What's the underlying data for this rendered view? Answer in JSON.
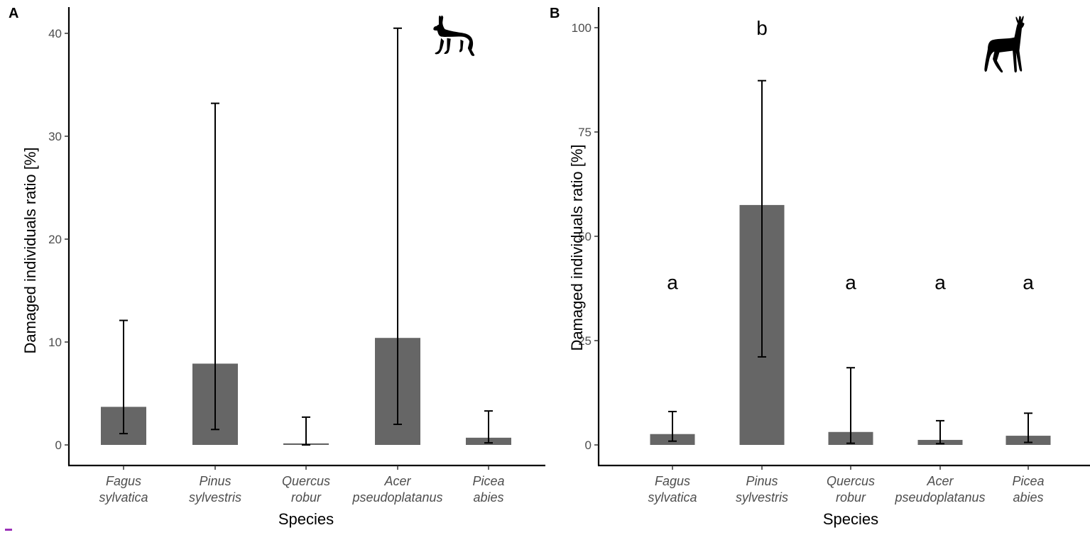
{
  "figure": {
    "panels": [
      {
        "id": "A",
        "letter": "A",
        "animal_icon": "hare-silhouette-icon",
        "ylabel": "Damaged individuals ratio [%]",
        "xlabel": "Species",
        "yticks": [
          "0",
          "10",
          "20",
          "30",
          "40"
        ]
      },
      {
        "id": "B",
        "letter": "B",
        "animal_icon": "roe-deer-silhouette-icon",
        "ylabel": "Damaged individuals ratio [%]",
        "xlabel": "Species",
        "yticks": [
          "0",
          "25",
          "50",
          "75",
          "100"
        ]
      }
    ],
    "species_line1": [
      "Fagus",
      "Pinus",
      "Quercus",
      "Acer",
      "Picea"
    ],
    "species_line2": [
      "sylvatica",
      "sylvestris",
      "robur",
      "pseudoplatanus",
      "abies"
    ],
    "colors": {
      "bar": "#666666",
      "axis": "#000000",
      "tick_label": "#4d4d4d",
      "footer_mark": "#9b30b8"
    }
  },
  "chart_data": [
    {
      "type": "bar",
      "title": "A",
      "xlabel": "Species",
      "ylabel": "Damaged individuals ratio [%]",
      "categories": [
        "Fagus sylvatica",
        "Pinus sylvestris",
        "Quercus robur",
        "Acer pseudoplatanus",
        "Picea abies"
      ],
      "values": [
        3.7,
        7.9,
        0.15,
        10.4,
        0.7
      ],
      "error_low": [
        1.1,
        1.5,
        0.0,
        2.0,
        0.2
      ],
      "error_high": [
        12.1,
        33.2,
        2.7,
        40.5,
        3.3
      ],
      "ylim": [
        0,
        42
      ],
      "yticks": [
        0,
        10,
        20,
        30,
        40
      ],
      "grid": false,
      "annotations": [
        "hare silhouette (top right)"
      ]
    },
    {
      "type": "bar",
      "title": "B",
      "xlabel": "Species",
      "ylabel": "Damaged individuals ratio [%]",
      "categories": [
        "Fagus sylvatica",
        "Pinus sylvestris",
        "Quercus robur",
        "Acer pseudoplatanus",
        "Picea abies"
      ],
      "values": [
        2.6,
        57.5,
        3.1,
        1.2,
        2.2
      ],
      "error_low": [
        0.9,
        21.1,
        0.4,
        0.3,
        0.6
      ],
      "error_high": [
        8.0,
        87.3,
        18.5,
        5.8,
        7.6
      ],
      "significance_letters": [
        "a",
        "b",
        "a",
        "a",
        "a"
      ],
      "significance_y": [
        39,
        100,
        39,
        39,
        39
      ],
      "ylim": [
        0,
        105
      ],
      "yticks": [
        0,
        25,
        50,
        75,
        100
      ],
      "grid": false,
      "annotations": [
        "roe deer silhouette (top right)"
      ]
    }
  ]
}
